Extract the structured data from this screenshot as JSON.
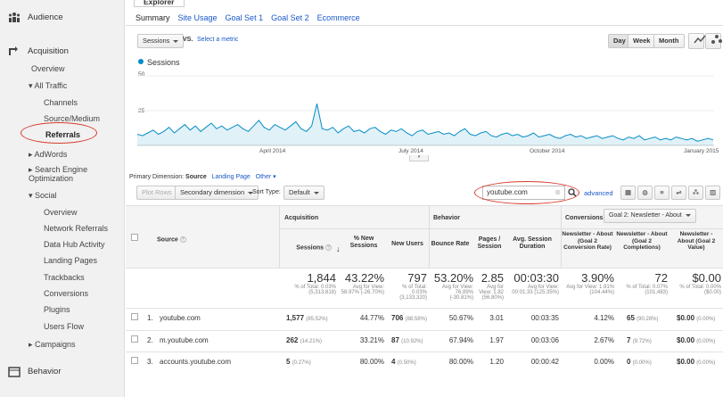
{
  "sidebar": {
    "audience": "Audience",
    "acquisition": "Acquisition",
    "overview": "Overview",
    "all_traffic": "All Traffic",
    "channels": "Channels",
    "source_medium": "Source/Medium",
    "referrals": "Referrals",
    "adwords": "AdWords",
    "seo": "Search Engine Optimization",
    "social": "Social",
    "social_items": [
      "Overview",
      "Network Referrals",
      "Data Hub Activity",
      "Landing Pages",
      "Trackbacks",
      "Conversions",
      "Plugins",
      "Users Flow"
    ],
    "campaigns": "Campaigns",
    "behavior": "Behavior"
  },
  "header": {
    "explorer_tab": "Explorer",
    "subtabs": [
      "Summary",
      "Site Usage",
      "Goal Set 1",
      "Goal Set 2",
      "Ecommerce"
    ]
  },
  "controls": {
    "metric": "Sessions",
    "vs": "VS.",
    "select_metric": "Select a metric",
    "day": "Day",
    "week": "Week",
    "month": "Month"
  },
  "chart": {
    "legend": "Sessions",
    "y_tick_top": "50",
    "y_tick_mid": "25",
    "x_labels": [
      "April 2014",
      "July 2014",
      "October 2014",
      "January 2015"
    ],
    "color": "#058dc7"
  },
  "chart_data": {
    "type": "area",
    "series": [
      {
        "name": "Sessions",
        "values": [
          8,
          7,
          9,
          11,
          8,
          10,
          13,
          9,
          12,
          15,
          11,
          14,
          10,
          13,
          16,
          12,
          14,
          11,
          13,
          15,
          12,
          10,
          14,
          18,
          13,
          11,
          15,
          13,
          11,
          14,
          17,
          12,
          10,
          14,
          30,
          12,
          11,
          13,
          9,
          12,
          14,
          10,
          11,
          9,
          12,
          13,
          10,
          8,
          11,
          10,
          12,
          9,
          7,
          10,
          11,
          8,
          9,
          10,
          8,
          9,
          7,
          10,
          12,
          8,
          7,
          9,
          10,
          7,
          6,
          8,
          9,
          7,
          8,
          6,
          7,
          9,
          6,
          7,
          8,
          6,
          5,
          7,
          8,
          6,
          7,
          5,
          6,
          7,
          5,
          6,
          7,
          5,
          4,
          6,
          5,
          7,
          4,
          5,
          6,
          4,
          5,
          4,
          6,
          5,
          4,
          5,
          3,
          4,
          5,
          4
        ]
      }
    ],
    "ylim": [
      0,
      50
    ]
  },
  "dimension_bar": {
    "label": "Primary Dimension:",
    "source": "Source",
    "landing_page": "Landing Page",
    "other": "Other"
  },
  "toolbar": {
    "plot_rows": "Plot Rows",
    "secondary": "Secondary dimension",
    "sort_type_label": "Sort Type:",
    "sort_default": "Default",
    "search_value": "youtube.com",
    "advanced": "advanced"
  },
  "table": {
    "group_acquisition": "Acquisition",
    "group_behavior": "Behavior",
    "group_conversions": "Conversions",
    "goal_select": "Goal 2: Newsletter - About",
    "col_source": "Source",
    "col_sessions": "Sessions",
    "col_new_sessions": "% New Sessions",
    "col_new_users": "New Users",
    "col_bounce": "Bounce Rate",
    "col_pages": "Pages / Session",
    "col_duration": "Avg. Session Duration",
    "col_conv_rate": "Newsletter - About (Goal 2 Conversion Rate)",
    "col_completions": "Newsletter - About (Goal 2 Completions)",
    "col_value": "Newsletter - About (Goal 2 Value)",
    "totals": {
      "sessions": "1,844",
      "sessions_sub": "% of Total: 0.03% (5,313,618)",
      "new_sessions": "43.22%",
      "new_sessions_sub": "Avg for View: 58.97% (-26.70%)",
      "new_users": "797",
      "new_users_sub": "% of Total: 0.03% (3,133,320)",
      "bounce": "53.20%",
      "bounce_sub": "Avg for View: 76.89% (-30.81%)",
      "pages": "2.85",
      "pages_sub": "Avg for View: 1.82 (56.80%)",
      "duration": "00:03:30",
      "duration_sub": "Avg for View: 00:01:33 (125.35%)",
      "conv_rate": "3.90%",
      "conv_rate_sub": "Avg for View: 1.91% (104.44%)",
      "completions": "72",
      "completions_sub": "% of Total: 0.07% (101,483)",
      "value": "$0.00",
      "value_sub": "% of Total: 0.00% ($0.00)"
    },
    "rows": [
      {
        "idx": "1.",
        "source": "youtube.com",
        "sessions": "1,577",
        "sessions_pct": "(85.52%)",
        "new_sessions": "44.77%",
        "new_users": "706",
        "new_users_pct": "(88.58%)",
        "bounce": "50.67%",
        "pages": "3.01",
        "duration": "00:03:35",
        "conv_rate": "4.12%",
        "completions": "65",
        "completions_pct": "(90.28%)",
        "value": "$0.00",
        "value_pct": "(0.00%)"
      },
      {
        "idx": "2.",
        "source": "m.youtube.com",
        "sessions": "262",
        "sessions_pct": "(14.21%)",
        "new_sessions": "33.21%",
        "new_users": "87",
        "new_users_pct": "(10.92%)",
        "bounce": "67.94%",
        "pages": "1.97",
        "duration": "00:03:06",
        "conv_rate": "2.67%",
        "completions": "7",
        "completions_pct": "(9.72%)",
        "value": "$0.00",
        "value_pct": "(0.00%)"
      },
      {
        "idx": "3.",
        "source": "accounts.youtube.com",
        "sessions": "5",
        "sessions_pct": "(0.27%)",
        "new_sessions": "80.00%",
        "new_users": "4",
        "new_users_pct": "(0.50%)",
        "bounce": "80.00%",
        "pages": "1.20",
        "duration": "00:00:42",
        "conv_rate": "0.00%",
        "completions": "0",
        "completions_pct": "(0.00%)",
        "value": "$0.00",
        "value_pct": "(0.00%)"
      }
    ]
  }
}
